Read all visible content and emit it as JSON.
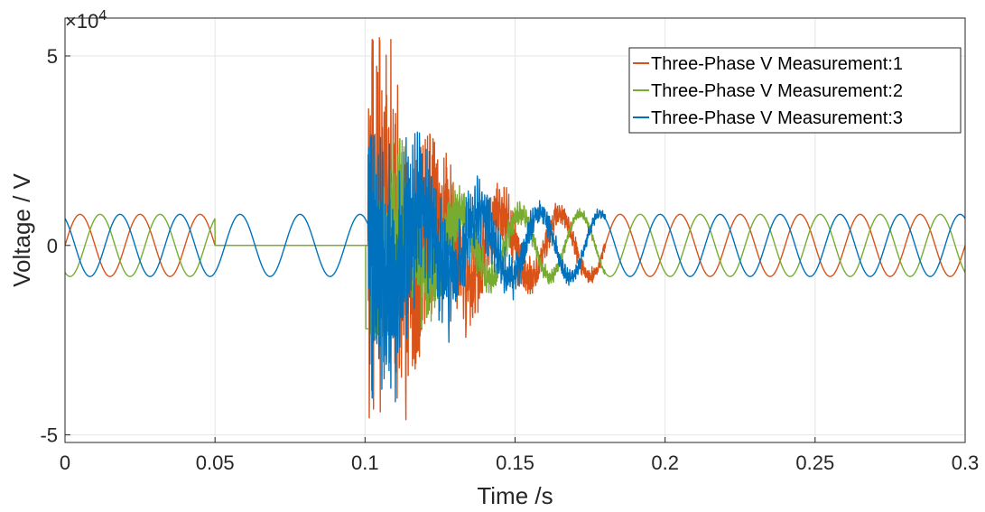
{
  "chart_data": {
    "type": "line",
    "title": "",
    "xlabel": "Time /s",
    "ylabel": "Voltage / V",
    "xlim": [
      0,
      0.3
    ],
    "ylim": [
      -52000,
      60000
    ],
    "x_ticks": [
      0,
      0.05,
      0.1,
      0.15,
      0.2,
      0.25,
      0.3
    ],
    "x_tick_labels": [
      "0",
      "0.05",
      "0.1",
      "0.15",
      "0.2",
      "0.25",
      "0.3"
    ],
    "y_ticks": [
      -50000,
      0,
      50000
    ],
    "y_tick_labels": [
      "-5",
      "0",
      "5"
    ],
    "y_exponent_label": "×10",
    "y_exponent_power": "4",
    "grid": true,
    "legend_position": "top-right",
    "frequency_hz": 50,
    "steady_state_amplitude": 8200,
    "series": [
      {
        "name": "Three-Phase V Measurement:1",
        "color": "#D95319",
        "phase_deg": 0,
        "segments": [
          {
            "t_start": 0,
            "t_end": 0.05,
            "behavior": "sinusoid",
            "amplitude": 8200
          },
          {
            "t_start": 0.05,
            "t_end": 0.101,
            "behavior": "zero",
            "amplitude": 0
          },
          {
            "t_start": 0.101,
            "t_end": 0.18,
            "behavior": "transient",
            "peak_max": 55000,
            "peak_min": -46000
          },
          {
            "t_start": 0.18,
            "t_end": 0.3,
            "behavior": "sinusoid",
            "amplitude": 8200
          }
        ]
      },
      {
        "name": "Three-Phase V Measurement:2",
        "color": "#77AC30",
        "phase_deg": -120,
        "segments": [
          {
            "t_start": 0,
            "t_end": 0.05,
            "behavior": "sinusoid",
            "amplitude": 8200
          },
          {
            "t_start": 0.05,
            "t_end": 0.101,
            "behavior": "zero",
            "amplitude": 0
          },
          {
            "t_start": 0.101,
            "t_end": 0.18,
            "behavior": "transient",
            "peak_max": 28000,
            "peak_min": -24000
          },
          {
            "t_start": 0.18,
            "t_end": 0.3,
            "behavior": "sinusoid",
            "amplitude": 8200
          }
        ]
      },
      {
        "name": "Three-Phase V Measurement:3",
        "color": "#0072BD",
        "phase_deg": 120,
        "segments": [
          {
            "t_start": 0,
            "t_end": 0.05,
            "behavior": "sinusoid",
            "amplitude": 8200
          },
          {
            "t_start": 0.05,
            "t_end": 0.101,
            "behavior": "sinusoid",
            "amplitude": 8200
          },
          {
            "t_start": 0.101,
            "t_end": 0.18,
            "behavior": "transient",
            "peak_max": 30000,
            "peak_min": -42000
          },
          {
            "t_start": 0.18,
            "t_end": 0.3,
            "behavior": "sinusoid",
            "amplitude": 8200
          }
        ]
      }
    ]
  }
}
